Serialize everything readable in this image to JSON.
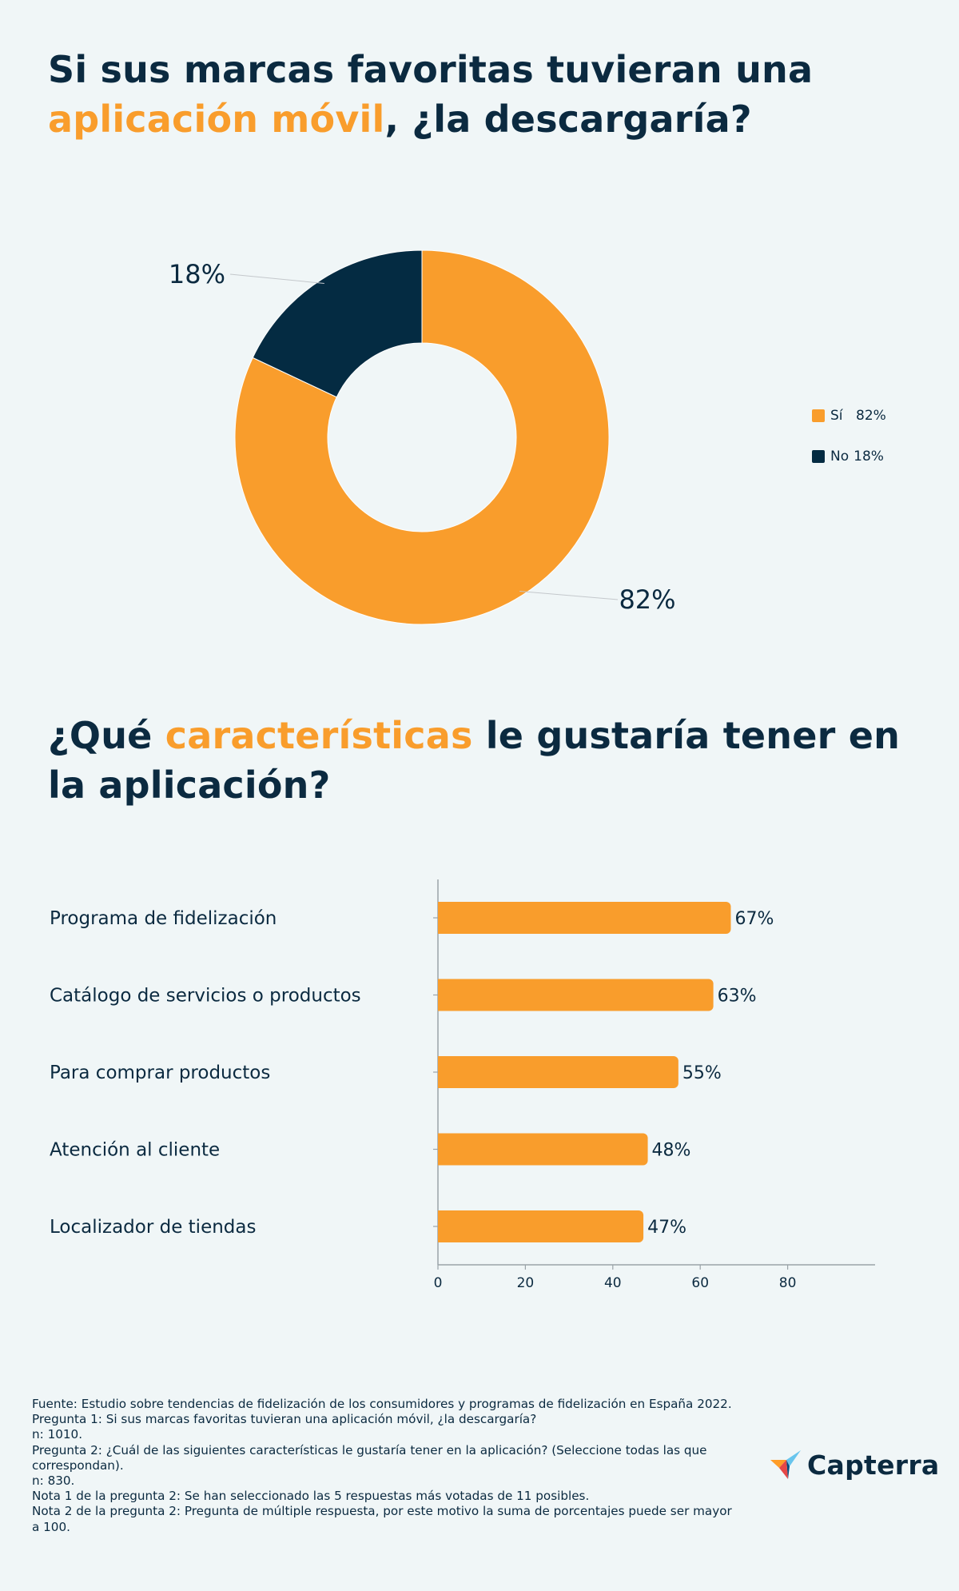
{
  "section1": {
    "title_part1": "Si sus marcas favoritas tuvieran una",
    "title_highlight": "aplicación móvil",
    "title_part2": ", ¿la descargaría?"
  },
  "section2": {
    "title_part1": "¿Qué ",
    "title_highlight": "características",
    "title_part2": " le gustaría tener en la aplicación?"
  },
  "legend": [
    {
      "label": "Sí",
      "value": "82%"
    },
    {
      "label": "No",
      "value": "18%"
    }
  ],
  "chart_data": [
    {
      "type": "pie",
      "variant": "donut",
      "title": "Si sus marcas favoritas tuvieran una aplicación móvil, ¿la descargaría?",
      "categories": [
        "Sí",
        "No"
      ],
      "values": [
        82,
        18
      ],
      "labels": [
        "82%",
        "18%"
      ],
      "colors": [
        "#f99d2c",
        "#042b42"
      ],
      "legend_position": "right"
    },
    {
      "type": "bar",
      "orientation": "horizontal",
      "title": "¿Qué características le gustaría tener en la aplicación?",
      "categories": [
        "Programa de fidelización",
        "Catálogo de servicios o productos",
        "Para comprar productos",
        "Atención al cliente",
        "Localizador de tiendas"
      ],
      "values": [
        67,
        63,
        55,
        48,
        47
      ],
      "labels": [
        "67%",
        "63%",
        "55%",
        "48%",
        "47%"
      ],
      "xlim": [
        0,
        100
      ],
      "xticks": [
        0,
        20,
        40,
        60,
        80
      ],
      "tick_labels": [
        "0",
        "20",
        "40",
        "60",
        "80"
      ],
      "color": "#f99d2c",
      "grid": false
    }
  ],
  "footnotes": [
    "Fuente: Estudio sobre tendencias de fidelización de los consumidores y programas de fidelización en España 2022.",
    "Pregunta 1: Si sus marcas favoritas tuvieran una aplicación móvil, ¿la descargaría?",
    "n: 1010.",
    "Pregunta 2: ¿Cuál de las siguientes características le gustaría tener en la aplicación? (Seleccione todas las que correspondan).",
    "n: 830.",
    "Nota 1 de la pregunta 2:  Se han seleccionado las 5 respuestas más votadas de 11 posibles.",
    "Nota 2 de la pregunta 2: Pregunta de múltiple respuesta, por este motivo la suma de porcentajes puede ser mayor a 100."
  ],
  "logo": {
    "text": "Capterra"
  }
}
